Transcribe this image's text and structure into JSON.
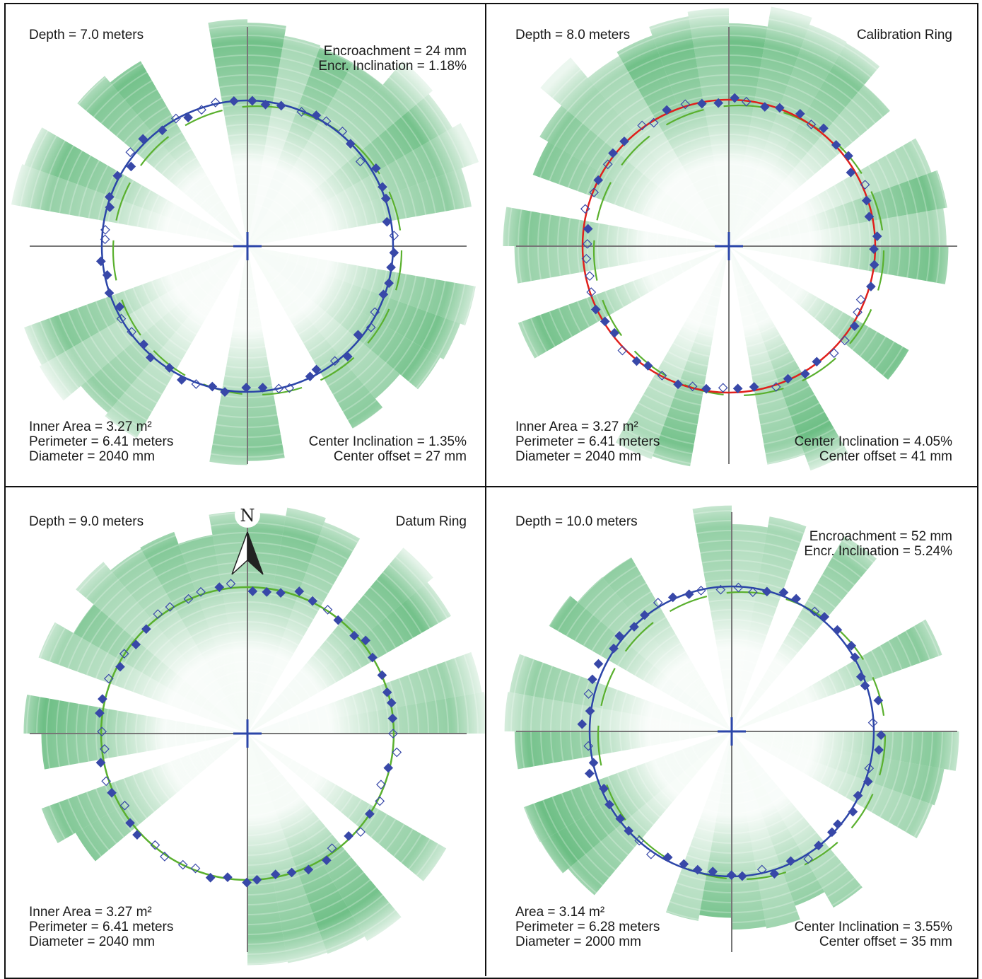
{
  "colors": {
    "sonar": "#3aa85a",
    "measured_fit": "#2b45a8",
    "reference_dashed": "#5ab02e",
    "calibration_ring": "#e0201c",
    "datum_ring": "#5ab02e",
    "marker": "#3848a8",
    "axes": "#777777"
  },
  "panels": [
    {
      "id": "depth-7",
      "depth_label": "Depth = 7.0 meters",
      "top_right": [
        "Encroachment = 24 mm",
        "Encr. Inclination = 1.18%"
      ],
      "bottom_left": [
        "Inner Area = 3.27 m²",
        "Perimeter = 6.41 meters",
        "Diameter = 2040 mm"
      ],
      "bottom_right": [
        "Center Inclination = 1.35%",
        "Center offset = 27 mm"
      ],
      "ring": "measured",
      "shows_reference_dashed": true
    },
    {
      "id": "depth-8",
      "depth_label": "Depth = 8.0 meters",
      "top_right": [
        "Calibration Ring"
      ],
      "bottom_left": [
        "Inner Area = 3.27 m²",
        "Perimeter = 6.41 meters",
        "Diameter = 2040 mm"
      ],
      "bottom_right": [
        "Center Inclination = 4.05%",
        "Center offset = 41 mm"
      ],
      "ring": "calibration",
      "shows_reference_dashed": true
    },
    {
      "id": "depth-9",
      "depth_label": "Depth = 9.0 meters",
      "top_right": [
        "Datum Ring"
      ],
      "bottom_left": [
        "Inner Area = 3.27 m²",
        "Perimeter = 6.41 meters",
        "Diameter = 2040 mm"
      ],
      "bottom_right": [],
      "ring": "datum",
      "shows_reference_dashed": false,
      "north_arrow": "N"
    },
    {
      "id": "depth-10",
      "depth_label": "Depth = 10.0 meters",
      "top_right": [
        "Encroachment = 52 mm",
        "Encr. Inclination = 5.24%"
      ],
      "bottom_left": [
        "Area = 3.14 m²",
        "Perimeter = 6.28 meters",
        "Diameter = 2000 mm"
      ],
      "bottom_right": [
        "Center Inclination = 3.55%",
        "Center offset = 35 mm"
      ],
      "ring": "measured",
      "shows_reference_dashed": true
    }
  ]
}
